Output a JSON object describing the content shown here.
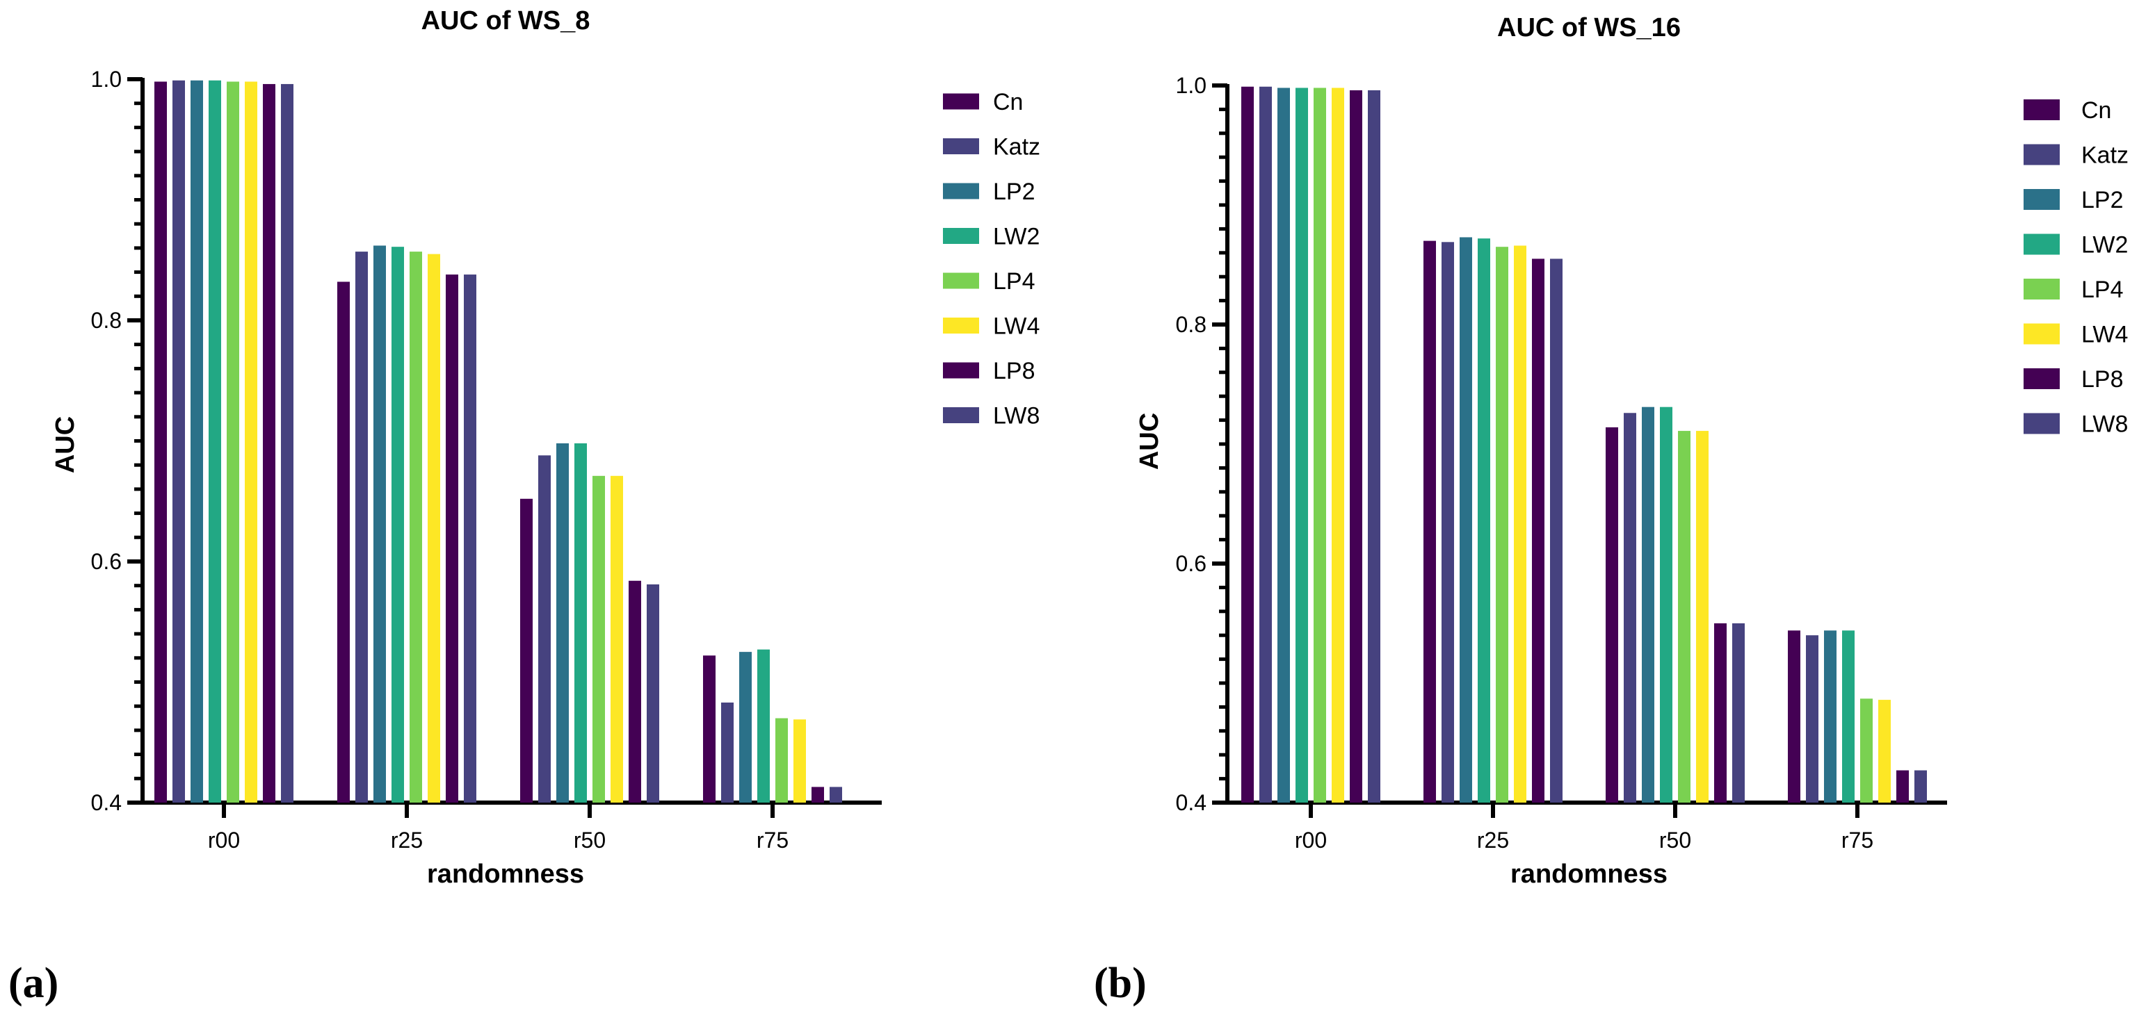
{
  "chart_data": [
    {
      "type": "bar",
      "title": "AUC of WS_8",
      "panel_label": "(a)",
      "xlabel": "randomness",
      "ylabel": "AUC",
      "ylim": [
        0.4,
        1.0
      ],
      "yticks": [
        "0.4",
        "0.6",
        "0.8",
        "1.0"
      ],
      "categories": [
        "r00",
        "r25",
        "r50",
        "r75"
      ],
      "legend_position": "right",
      "series": [
        {
          "name": "Cn",
          "color": "#440154",
          "values": [
            0.998,
            0.832,
            0.652,
            0.522
          ]
        },
        {
          "name": "Katz",
          "color": "#46427F",
          "values": [
            0.999,
            0.857,
            0.688,
            0.483
          ]
        },
        {
          "name": "LP2",
          "color": "#2B7189",
          "values": [
            0.999,
            0.862,
            0.698,
            0.525
          ]
        },
        {
          "name": "LW2",
          "color": "#22A884",
          "values": [
            0.999,
            0.861,
            0.698,
            0.527
          ]
        },
        {
          "name": "LP4",
          "color": "#7AD151",
          "values": [
            0.998,
            0.857,
            0.671,
            0.47
          ]
        },
        {
          "name": "LW4",
          "color": "#FDE725",
          "values": [
            0.998,
            0.855,
            0.671,
            0.469
          ]
        },
        {
          "name": "LP8",
          "color": "#440154",
          "values": [
            0.996,
            0.838,
            0.584,
            0.413
          ]
        },
        {
          "name": "LW8",
          "color": "#46427F",
          "values": [
            0.996,
            0.838,
            0.581,
            0.413
          ]
        }
      ]
    },
    {
      "type": "bar",
      "title": "AUC of WS_16",
      "panel_label": "(b)",
      "xlabel": "randomness",
      "ylabel": "AUC",
      "ylim": [
        0.4,
        1.0
      ],
      "yticks": [
        "0.4",
        "0.6",
        "0.8",
        "1.0"
      ],
      "categories": [
        "r00",
        "r25",
        "r50",
        "r75"
      ],
      "legend_position": "right",
      "series": [
        {
          "name": "Cn",
          "color": "#440154",
          "values": [
            0.999,
            0.87,
            0.714,
            0.544
          ]
        },
        {
          "name": "Katz",
          "color": "#46427F",
          "values": [
            0.999,
            0.869,
            0.726,
            0.54
          ]
        },
        {
          "name": "LP2",
          "color": "#2B7189",
          "values": [
            0.998,
            0.873,
            0.731,
            0.544
          ]
        },
        {
          "name": "LW2",
          "color": "#22A884",
          "values": [
            0.998,
            0.872,
            0.731,
            0.544
          ]
        },
        {
          "name": "LP4",
          "color": "#7AD151",
          "values": [
            0.998,
            0.865,
            0.711,
            0.487
          ]
        },
        {
          "name": "LW4",
          "color": "#FDE725",
          "values": [
            0.998,
            0.866,
            0.711,
            0.486
          ]
        },
        {
          "name": "LP8",
          "color": "#440154",
          "values": [
            0.996,
            0.855,
            0.55,
            0.427
          ]
        },
        {
          "name": "LW8",
          "color": "#46427F",
          "values": [
            0.996,
            0.855,
            0.55,
            0.427
          ]
        }
      ]
    }
  ]
}
